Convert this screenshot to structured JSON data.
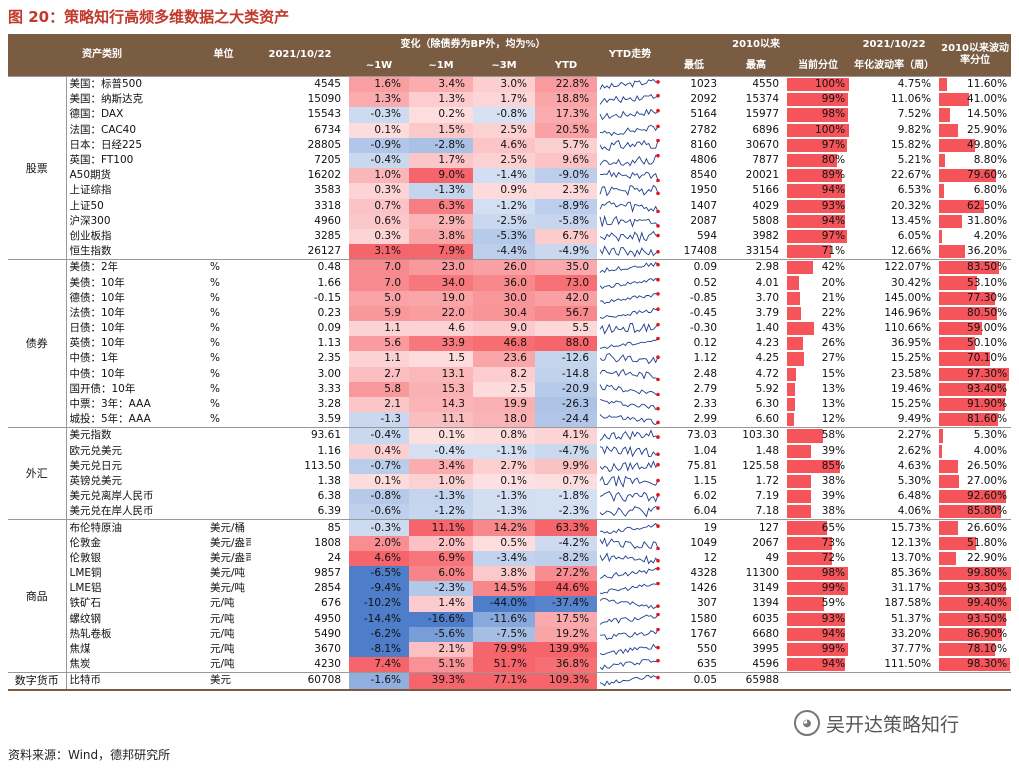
{
  "figure_title": "图 20：策略知行高频多维数据之大类资产",
  "source": "资料来源：Wind，德邦研究所",
  "watermark": "吴开达策略知行",
  "headers": {
    "category": "资产类别",
    "unit": "单位",
    "date": "2021/10/22",
    "change_group": "变化（除债券为BP外，均为%）",
    "w1": "~1W",
    "m1": "~1M",
    "m3": "~3M",
    "ytd": "YTD",
    "trend": "YTD走势",
    "since2010": "2010以来",
    "low": "最低",
    "high": "最高",
    "pct": "当前分位",
    "vol_date": "2021/10/22",
    "vol": "年化波动率（周）",
    "vol_pct": "2010以来波动率分位"
  },
  "groups": [
    {
      "name": "股票",
      "rows": [
        {
          "n": "美国：标普500",
          "u": "",
          "v": "4545",
          "w1": "1.6%",
          "m1": "3.4%",
          "m3": "3.0%",
          "ytd": "22.8%",
          "lo": "1023",
          "hi": "4550",
          "pct": "100%",
          "pv": 1.0,
          "vol": "4.75%",
          "vp": "11.60%",
          "vpv": 0.116
        },
        {
          "n": "美国：纳斯达克",
          "u": "",
          "v": "15090",
          "w1": "1.3%",
          "m1": "1.3%",
          "m3": "1.7%",
          "ytd": "18.8%",
          "lo": "2092",
          "hi": "15374",
          "pct": "99%",
          "pv": 0.99,
          "vol": "11.06%",
          "vp": "41.00%",
          "vpv": 0.41
        },
        {
          "n": "德国：DAX",
          "u": "",
          "v": "15543",
          "w1": "-0.3%",
          "m1": "0.2%",
          "m3": "-0.8%",
          "ytd": "17.3%",
          "lo": "5164",
          "hi": "15977",
          "pct": "98%",
          "pv": 0.98,
          "vol": "7.52%",
          "vp": "14.50%",
          "vpv": 0.145
        },
        {
          "n": "法国：CAC40",
          "u": "",
          "v": "6734",
          "w1": "0.1%",
          "m1": "1.5%",
          "m3": "2.5%",
          "ytd": "20.5%",
          "lo": "2782",
          "hi": "6896",
          "pct": "100%",
          "pv": 1.0,
          "vol": "9.82%",
          "vp": "25.90%",
          "vpv": 0.259
        },
        {
          "n": "日本：日经225",
          "u": "",
          "v": "28805",
          "w1": "-0.9%",
          "m1": "-2.8%",
          "m3": "4.6%",
          "ytd": "5.7%",
          "lo": "8160",
          "hi": "30670",
          "pct": "97%",
          "pv": 0.97,
          "vol": "15.82%",
          "vp": "49.80%",
          "vpv": 0.498
        },
        {
          "n": "英国：FT100",
          "u": "",
          "v": "7205",
          "w1": "-0.4%",
          "m1": "1.7%",
          "m3": "2.5%",
          "ytd": "9.6%",
          "lo": "4806",
          "hi": "7877",
          "pct": "80%",
          "pv": 0.8,
          "vol": "5.21%",
          "vp": "8.80%",
          "vpv": 0.088
        },
        {
          "n": "A50期货",
          "u": "",
          "v": "16202",
          "w1": "1.0%",
          "m1": "9.0%",
          "m3": "-1.4%",
          "ytd": "-9.0%",
          "lo": "8540",
          "hi": "20021",
          "pct": "89%",
          "pv": 0.89,
          "vol": "22.67%",
          "vp": "79.60%",
          "vpv": 0.796
        },
        {
          "n": "上证综指",
          "u": "",
          "v": "3583",
          "w1": "0.3%",
          "m1": "-1.3%",
          "m3": "0.9%",
          "ytd": "2.3%",
          "lo": "1950",
          "hi": "5166",
          "pct": "94%",
          "pv": 0.94,
          "vol": "6.53%",
          "vp": "6.80%",
          "vpv": 0.068
        },
        {
          "n": "上证50",
          "u": "",
          "v": "3318",
          "w1": "0.7%",
          "m1": "6.3%",
          "m3": "-1.2%",
          "ytd": "-8.9%",
          "lo": "1407",
          "hi": "4029",
          "pct": "93%",
          "pv": 0.93,
          "vol": "20.32%",
          "vp": "62.50%",
          "vpv": 0.625
        },
        {
          "n": "沪深300",
          "u": "",
          "v": "4960",
          "w1": "0.6%",
          "m1": "2.9%",
          "m3": "-2.5%",
          "ytd": "-5.8%",
          "lo": "2087",
          "hi": "5808",
          "pct": "94%",
          "pv": 0.94,
          "vol": "13.45%",
          "vp": "31.80%",
          "vpv": 0.318
        },
        {
          "n": "创业板指",
          "u": "",
          "v": "3285",
          "w1": "0.3%",
          "m1": "3.8%",
          "m3": "-5.3%",
          "ytd": "6.7%",
          "lo": "594",
          "hi": "3982",
          "pct": "97%",
          "pv": 0.97,
          "vol": "6.05%",
          "vp": "4.20%",
          "vpv": 0.042
        },
        {
          "n": "恒生指数",
          "u": "",
          "v": "26127",
          "w1": "3.1%",
          "m1": "7.9%",
          "m3": "-4.4%",
          "ytd": "-4.9%",
          "lo": "17408",
          "hi": "33154",
          "pct": "71%",
          "pv": 0.71,
          "vol": "12.66%",
          "vp": "36.20%",
          "vpv": 0.362
        }
      ]
    },
    {
      "name": "债券",
      "rows": [
        {
          "n": "美债：2年",
          "u": "%",
          "v": "0.48",
          "w1": "7.0",
          "m1": "23.0",
          "m3": "26.0",
          "ytd": "35.0",
          "lo": "0.09",
          "hi": "2.98",
          "pct": "42%",
          "pv": 0.42,
          "vol": "122.07%",
          "vp": "83.50%",
          "vpv": 0.835
        },
        {
          "n": "美债：10年",
          "u": "%",
          "v": "1.66",
          "w1": "7.0",
          "m1": "34.0",
          "m3": "36.0",
          "ytd": "73.0",
          "lo": "0.52",
          "hi": "4.01",
          "pct": "20%",
          "pv": 0.2,
          "vol": "30.42%",
          "vp": "53.10%",
          "vpv": 0.531
        },
        {
          "n": "德债：10年",
          "u": "%",
          "v": "-0.15",
          "w1": "5.0",
          "m1": "19.0",
          "m3": "30.0",
          "ytd": "42.0",
          "lo": "-0.85",
          "hi": "3.70",
          "pct": "21%",
          "pv": 0.21,
          "vol": "145.00%",
          "vp": "77.30%",
          "vpv": 0.773
        },
        {
          "n": "法债：10年",
          "u": "%",
          "v": "0.23",
          "w1": "5.9",
          "m1": "22.0",
          "m3": "30.4",
          "ytd": "56.7",
          "lo": "-0.45",
          "hi": "3.79",
          "pct": "22%",
          "pv": 0.22,
          "vol": "146.96%",
          "vp": "80.50%",
          "vpv": 0.805
        },
        {
          "n": "日债：10年",
          "u": "%",
          "v": "0.09",
          "w1": "1.1",
          "m1": "4.6",
          "m3": "9.0",
          "ytd": "5.5",
          "lo": "-0.30",
          "hi": "1.40",
          "pct": "43%",
          "pv": 0.43,
          "vol": "110.66%",
          "vp": "59.00%",
          "vpv": 0.59
        },
        {
          "n": "英债：10年",
          "u": "%",
          "v": "1.13",
          "w1": "5.6",
          "m1": "33.9",
          "m3": "46.8",
          "ytd": "88.0",
          "lo": "0.12",
          "hi": "4.23",
          "pct": "26%",
          "pv": 0.26,
          "vol": "36.95%",
          "vp": "50.10%",
          "vpv": 0.501
        },
        {
          "n": "中债：1年",
          "u": "%",
          "v": "2.35",
          "w1": "1.1",
          "m1": "1.5",
          "m3": "23.6",
          "ytd": "-12.6",
          "lo": "1.12",
          "hi": "4.25",
          "pct": "27%",
          "pv": 0.27,
          "vol": "15.25%",
          "vp": "70.10%",
          "vpv": 0.701
        },
        {
          "n": "中债：10年",
          "u": "%",
          "v": "3.00",
          "w1": "2.7",
          "m1": "13.1",
          "m3": "8.2",
          "ytd": "-14.8",
          "lo": "2.48",
          "hi": "4.72",
          "pct": "15%",
          "pv": 0.15,
          "vol": "23.58%",
          "vp": "97.30%",
          "vpv": 0.973
        },
        {
          "n": "国开债：10年",
          "u": "%",
          "v": "3.33",
          "w1": "5.8",
          "m1": "15.3",
          "m3": "2.5",
          "ytd": "-20.9",
          "lo": "2.79",
          "hi": "5.92",
          "pct": "13%",
          "pv": 0.13,
          "vol": "19.46%",
          "vp": "93.40%",
          "vpv": 0.934
        },
        {
          "n": "中票：3年：AAA",
          "u": "%",
          "v": "3.28",
          "w1": "2.1",
          "m1": "14.3",
          "m3": "19.9",
          "ytd": "-26.3",
          "lo": "2.33",
          "hi": "6.30",
          "pct": "13%",
          "pv": 0.13,
          "vol": "15.25%",
          "vp": "91.90%",
          "vpv": 0.919
        },
        {
          "n": "城投：5年：AAA",
          "u": "%",
          "v": "3.59",
          "w1": "-1.3",
          "m1": "11.1",
          "m3": "18.0",
          "ytd": "-24.4",
          "lo": "2.99",
          "hi": "6.60",
          "pct": "12%",
          "pv": 0.12,
          "vol": "9.49%",
          "vp": "81.60%",
          "vpv": 0.816
        }
      ]
    },
    {
      "name": "外汇",
      "rows": [
        {
          "n": "美元指数",
          "u": "",
          "v": "93.61",
          "w1": "-0.4%",
          "m1": "0.1%",
          "m3": "0.8%",
          "ytd": "4.1%",
          "lo": "73.03",
          "hi": "103.30",
          "pct": "58%",
          "pv": 0.58,
          "vol": "2.27%",
          "vp": "5.30%",
          "vpv": 0.053
        },
        {
          "n": "欧元兑美元",
          "u": "",
          "v": "1.16",
          "w1": "0.4%",
          "m1": "-0.4%",
          "m3": "-1.1%",
          "ytd": "-4.7%",
          "lo": "1.04",
          "hi": "1.48",
          "pct": "39%",
          "pv": 0.39,
          "vol": "2.62%",
          "vp": "4.00%",
          "vpv": 0.04
        },
        {
          "n": "美元兑日元",
          "u": "",
          "v": "113.50",
          "w1": "-0.7%",
          "m1": "3.4%",
          "m3": "2.7%",
          "ytd": "9.9%",
          "lo": "75.81",
          "hi": "125.58",
          "pct": "85%",
          "pv": 0.85,
          "vol": "4.63%",
          "vp": "26.50%",
          "vpv": 0.265
        },
        {
          "n": "英镑兑美元",
          "u": "",
          "v": "1.38",
          "w1": "0.1%",
          "m1": "1.0%",
          "m3": "0.1%",
          "ytd": "0.7%",
          "lo": "1.15",
          "hi": "1.72",
          "pct": "38%",
          "pv": 0.38,
          "vol": "5.30%",
          "vp": "27.00%",
          "vpv": 0.27
        },
        {
          "n": "美元兑离岸人民币",
          "u": "",
          "v": "6.38",
          "w1": "-0.8%",
          "m1": "-1.3%",
          "m3": "-1.3%",
          "ytd": "-1.8%",
          "lo": "6.02",
          "hi": "7.19",
          "pct": "39%",
          "pv": 0.39,
          "vol": "6.48%",
          "vp": "92.60%",
          "vpv": 0.926
        },
        {
          "n": "美元兑在岸人民币",
          "u": "",
          "v": "6.39",
          "w1": "-0.6%",
          "m1": "-1.2%",
          "m3": "-1.3%",
          "ytd": "-2.3%",
          "lo": "6.04",
          "hi": "7.18",
          "pct": "38%",
          "pv": 0.38,
          "vol": "4.06%",
          "vp": "85.80%",
          "vpv": 0.858
        }
      ]
    },
    {
      "name": "商品",
      "rows": [
        {
          "n": "布伦特原油",
          "u": "美元/桶",
          "v": "85",
          "w1": "-0.3%",
          "m1": "11.1%",
          "m3": "14.2%",
          "ytd": "63.3%",
          "lo": "19",
          "hi": "127",
          "pct": "65%",
          "pv": 0.65,
          "vol": "15.73%",
          "vp": "26.60%",
          "vpv": 0.266
        },
        {
          "n": "伦敦金",
          "u": "美元/盎司",
          "v": "1808",
          "w1": "2.0%",
          "m1": "2.0%",
          "m3": "0.5%",
          "ytd": "-4.2%",
          "lo": "1049",
          "hi": "2067",
          "pct": "73%",
          "pv": 0.73,
          "vol": "12.13%",
          "vp": "51.80%",
          "vpv": 0.518
        },
        {
          "n": "伦敦银",
          "u": "美元/盎司",
          "v": "24",
          "w1": "4.6%",
          "m1": "6.9%",
          "m3": "-3.4%",
          "ytd": "-8.2%",
          "lo": "12",
          "hi": "49",
          "pct": "72%",
          "pv": 0.72,
          "vol": "13.70%",
          "vp": "22.90%",
          "vpv": 0.229
        },
        {
          "n": "LME铜",
          "u": "美元/吨",
          "v": "9857",
          "w1": "-6.5%",
          "m1": "6.0%",
          "m3": "3.8%",
          "ytd": "27.2%",
          "lo": "4328",
          "hi": "11300",
          "pct": "98%",
          "pv": 0.98,
          "vol": "85.36%",
          "vp": "99.80%",
          "vpv": 0.998
        },
        {
          "n": "LME铝",
          "u": "美元/吨",
          "v": "2854",
          "w1": "-9.4%",
          "m1": "-2.3%",
          "m3": "14.5%",
          "ytd": "44.6%",
          "lo": "1426",
          "hi": "3149",
          "pct": "99%",
          "pv": 0.99,
          "vol": "31.17%",
          "vp": "93.30%",
          "vpv": 0.933
        },
        {
          "n": "铁矿石",
          "u": "元/吨",
          "v": "676",
          "w1": "-10.2%",
          "m1": "1.4%",
          "m3": "-44.0%",
          "ytd": "-37.4%",
          "lo": "307",
          "hi": "1394",
          "pct": "59%",
          "pv": 0.59,
          "vol": "187.58%",
          "vp": "99.40%",
          "vpv": 0.994
        },
        {
          "n": "螺纹钢",
          "u": "元/吨",
          "v": "4950",
          "w1": "-14.4%",
          "m1": "-16.6%",
          "m3": "-11.6%",
          "ytd": "17.5%",
          "lo": "1580",
          "hi": "6035",
          "pct": "93%",
          "pv": 0.93,
          "vol": "51.37%",
          "vp": "93.50%",
          "vpv": 0.935
        },
        {
          "n": "热轧卷板",
          "u": "元/吨",
          "v": "5490",
          "w1": "-6.2%",
          "m1": "-5.6%",
          "m3": "-7.5%",
          "ytd": "19.2%",
          "lo": "1767",
          "hi": "6680",
          "pct": "94%",
          "pv": 0.94,
          "vol": "33.20%",
          "vp": "86.90%",
          "vpv": 0.869
        },
        {
          "n": "焦煤",
          "u": "元/吨",
          "v": "3670",
          "w1": "-8.1%",
          "m1": "2.1%",
          "m3": "79.9%",
          "ytd": "139.9%",
          "lo": "550",
          "hi": "3995",
          "pct": "99%",
          "pv": 0.99,
          "vol": "37.77%",
          "vp": "78.10%",
          "vpv": 0.781
        },
        {
          "n": "焦炭",
          "u": "元/吨",
          "v": "4230",
          "w1": "7.4%",
          "m1": "5.1%",
          "m3": "51.7%",
          "ytd": "36.8%",
          "lo": "635",
          "hi": "4596",
          "pct": "94%",
          "pv": 0.94,
          "vol": "111.50%",
          "vp": "98.30%",
          "vpv": 0.983
        }
      ]
    },
    {
      "name": "数字货币",
      "rows": [
        {
          "n": "比特币",
          "u": "美元",
          "v": "60708",
          "w1": "-1.6%",
          "m1": "39.3%",
          "m3": "77.1%",
          "ytd": "109.3%",
          "lo": "0.05",
          "hi": "65988",
          "pct": "",
          "pv": 0,
          "vol": "",
          "vp": "",
          "vpv": 0
        }
      ]
    }
  ],
  "colors": {
    "header": "#7a5c43",
    "bar": "#f4545a",
    "pos": "#f4545a",
    "neg": "#3a6fc4",
    "spark": "#1f3f8f",
    "marker": "#e0141e"
  }
}
